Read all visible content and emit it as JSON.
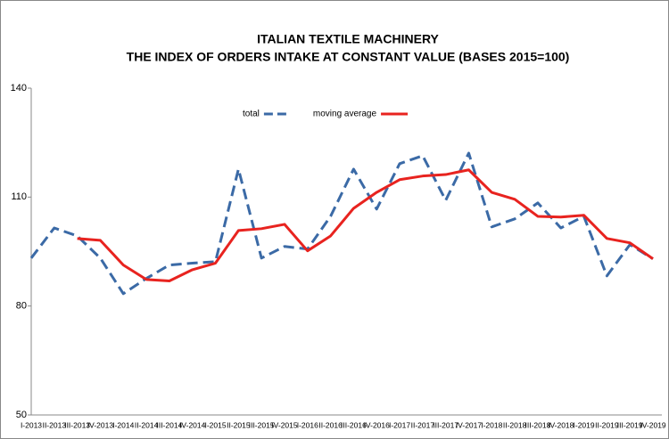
{
  "chart_data": {
    "type": "line",
    "title": [
      "ITALIAN TEXTILE MACHINERY",
      "THE INDEX OF ORDERS INTAKE AT CONSTANT VALUE (BASES 2015=100)"
    ],
    "categories": [
      "I-2013",
      "II-2013",
      "III-2013",
      "IV-2013",
      "I-2014",
      "II-2014",
      "III-2014",
      "IV-2014",
      "I-2015",
      "II-2015",
      "III-2015",
      "IV-2015",
      "I-2016",
      "II-2016",
      "III-2016",
      "IV-2016",
      "I-2017",
      "II-2017",
      "III-2017",
      "IV-2017",
      "I-2018",
      "II-2018",
      "III-2018",
      "IV-2018",
      "I-2019",
      "II-2019",
      "III-2019",
      "IV-2019"
    ],
    "series": [
      {
        "name": "total",
        "color": "#3b6aa6",
        "dashed": true,
        "values": [
          93.2,
          101.5,
          99.3,
          93.2,
          83.4,
          87.6,
          91.3,
          91.8,
          92.2,
          117.7,
          93.2,
          96.4,
          95.7,
          104.7,
          117.7,
          106.7,
          119.2,
          121.4,
          109.1,
          122.1,
          101.8,
          104.0,
          108.4,
          101.5,
          104.7,
          88.3,
          96.9,
          93.0
        ]
      },
      {
        "name": "moving average",
        "color": "#e8231f",
        "dashed": false,
        "values": [
          null,
          null,
          98.6,
          98.1,
          91.3,
          87.3,
          86.9,
          90.0,
          91.8,
          100.8,
          101.3,
          102.5,
          95.2,
          99.3,
          106.9,
          111.3,
          114.8,
          115.8,
          116.2,
          117.5,
          111.3,
          109.4,
          104.7,
          104.5,
          105.0,
          98.6,
          97.4,
          93.0
        ]
      }
    ],
    "ylim": [
      50,
      140
    ],
    "yticks": [
      50,
      80,
      110,
      140
    ],
    "grid": false,
    "legend": "top"
  }
}
